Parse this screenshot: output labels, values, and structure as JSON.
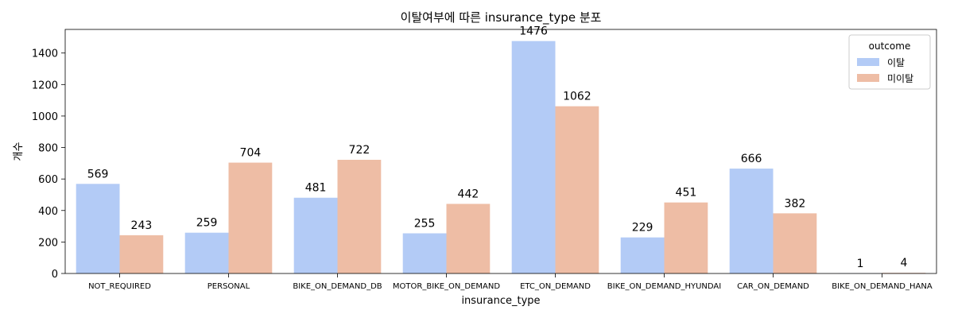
{
  "chart_data": {
    "type": "bar",
    "title": "이탈여부에 따른 insurance_type 분포",
    "xlabel": "insurance_type",
    "ylabel": "개수",
    "ylim": [
      0,
      1550
    ],
    "yticks": [
      0,
      200,
      400,
      600,
      800,
      1000,
      1200,
      1400
    ],
    "categories": [
      "NOT_REQUIRED",
      "PERSONAL",
      "BIKE_ON_DEMAND_DB",
      "MOTOR_BIKE_ON_DEMAND",
      "ETC_ON_DEMAND",
      "BIKE_ON_DEMAND_HYUNDAI",
      "CAR_ON_DEMAND",
      "BIKE_ON_DEMAND_HANA"
    ],
    "series": [
      {
        "name": "이탈",
        "color": "#b3cbf6",
        "values": [
          569,
          259,
          481,
          255,
          1476,
          229,
          666,
          1
        ]
      },
      {
        "name": "미이탈",
        "color": "#eebda5",
        "values": [
          243,
          704,
          722,
          442,
          1062,
          451,
          382,
          4
        ]
      }
    ],
    "legend": {
      "title": "outcome",
      "position": "top-right"
    },
    "grid": false
  }
}
